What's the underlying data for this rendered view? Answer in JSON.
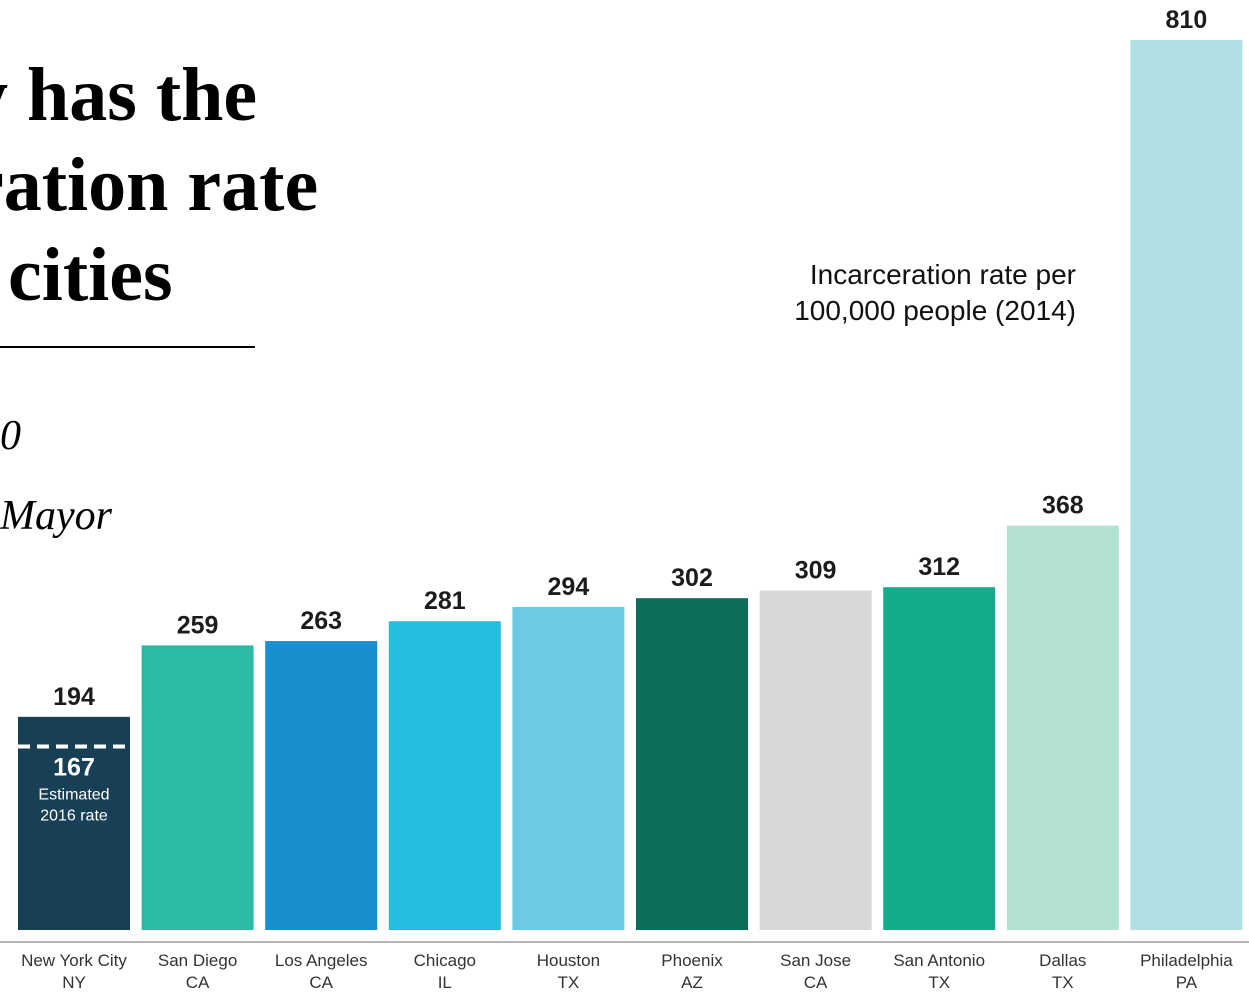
{
  "heading": {
    "lines": [
      "y has the",
      "ration rate",
      ". cities"
    ],
    "meta_line1": "0",
    "meta_line2": "Mayor"
  },
  "annotation": {
    "line1": "Incarceration rate per",
    "line2": "100,000 people (2014)"
  },
  "chart_data": {
    "type": "bar",
    "categories": [
      {
        "city": "New York City",
        "state": "NY"
      },
      {
        "city": "San Diego",
        "state": "CA"
      },
      {
        "city": "Los Angeles",
        "state": "CA"
      },
      {
        "city": "Chicago",
        "state": "IL"
      },
      {
        "city": "Houston",
        "state": "TX"
      },
      {
        "city": "Phoenix",
        "state": "AZ"
      },
      {
        "city": "San Jose",
        "state": "CA"
      },
      {
        "city": "San Antonio",
        "state": "TX"
      },
      {
        "city": "Dallas",
        "state": "TX"
      },
      {
        "city": "Philadelphia",
        "state": "PA"
      }
    ],
    "values": [
      194,
      259,
      263,
      281,
      294,
      302,
      309,
      312,
      368,
      810
    ],
    "colors": [
      "#173f56",
      "#2bbba5",
      "#1a8fd0",
      "#25bce0",
      "#6ccbe2",
      "#0c6e5a",
      "#d8d8da",
      "#13ad8c",
      "#b3e2d1",
      "#b2dfe3"
    ],
    "highlight": {
      "category_index": 0,
      "value": 167,
      "label_line1": "Estimated",
      "label_line2": "2016 rate",
      "line_style": "dashed",
      "color": "#ffffff"
    },
    "ylim": [
      0,
      810
    ],
    "grid": false,
    "baseline_color": "#9a9a9a"
  }
}
